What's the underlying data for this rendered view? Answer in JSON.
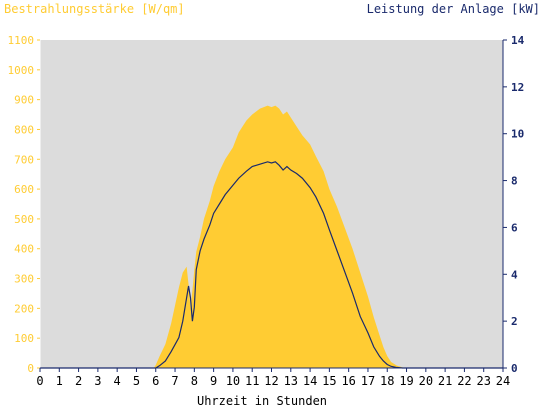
{
  "chart_data": {
    "type": "area",
    "title": "",
    "xlabel": "Uhrzeit in Stunden",
    "y_left_label": "Bestrahlungsstärke [W/qm]",
    "y_right_label": "Leistung der Anlage [kW]",
    "xlim": [
      0,
      24
    ],
    "ylim_left": [
      0,
      1100
    ],
    "ylim_right": [
      0,
      14
    ],
    "x_ticks": [
      "0",
      "1",
      "2",
      "3",
      "4",
      "5",
      "6",
      "7",
      "8",
      "9",
      "10",
      "11",
      "12",
      "13",
      "14",
      "15",
      "16",
      "17",
      "18",
      "19",
      "20",
      "21",
      "22",
      "23",
      "24"
    ],
    "y_left_ticks": [
      "0",
      "100",
      "200",
      "300",
      "400",
      "500",
      "600",
      "700",
      "800",
      "900",
      "1000",
      "1100"
    ],
    "y_right_ticks": [
      "0",
      "2",
      "4",
      "6",
      "8",
      "10",
      "12",
      "14"
    ],
    "grid": false,
    "colors": {
      "irradiance": "#ffcc33",
      "power": "#1a2a6c",
      "plot_background": "#dcdcdc",
      "left_axis_text": "#ffcc33",
      "right_axis_text": "#1a2a6c"
    },
    "series": [
      {
        "name": "Bestrahlungsstärke [W/qm]",
        "axis": "left",
        "x": [
          0,
          5.9,
          6.0,
          6.2,
          6.5,
          6.8,
          7.0,
          7.2,
          7.4,
          7.6,
          7.7,
          7.8,
          7.9,
          8.0,
          8.1,
          8.3,
          8.5,
          8.8,
          9.0,
          9.3,
          9.6,
          10.0,
          10.3,
          10.7,
          11.0,
          11.4,
          11.8,
          12.0,
          12.2,
          12.4,
          12.6,
          12.8,
          13.0,
          13.3,
          13.6,
          14.0,
          14.3,
          14.7,
          15.0,
          15.4,
          15.8,
          16.2,
          16.6,
          17.0,
          17.3,
          17.6,
          17.8,
          18.0,
          18.2,
          18.5,
          18.8,
          19.0,
          24
        ],
        "values": [
          0,
          0,
          10,
          40,
          80,
          150,
          210,
          270,
          320,
          340,
          280,
          200,
          260,
          330,
          390,
          440,
          500,
          560,
          610,
          660,
          700,
          740,
          790,
          830,
          850,
          870,
          880,
          875,
          880,
          870,
          850,
          860,
          840,
          810,
          780,
          750,
          710,
          660,
          600,
          540,
          470,
          400,
          320,
          240,
          170,
          110,
          70,
          40,
          20,
          8,
          2,
          0,
          0
        ]
      },
      {
        "name": "Leistung der Anlage [kW]",
        "axis": "right",
        "x": [
          0,
          6.0,
          6.2,
          6.5,
          6.8,
          7.0,
          7.2,
          7.4,
          7.6,
          7.7,
          7.8,
          7.9,
          8.0,
          8.1,
          8.3,
          8.5,
          8.8,
          9.0,
          9.3,
          9.6,
          10.0,
          10.3,
          10.7,
          11.0,
          11.4,
          11.8,
          12.0,
          12.2,
          12.4,
          12.6,
          12.8,
          13.0,
          13.3,
          13.6,
          14.0,
          14.3,
          14.7,
          15.0,
          15.4,
          15.8,
          16.2,
          16.6,
          17.0,
          17.3,
          17.6,
          17.8,
          18.0,
          18.2,
          18.5,
          18.8,
          19.0,
          24
        ],
        "values": [
          0,
          0,
          0.1,
          0.3,
          0.7,
          1.0,
          1.3,
          2.0,
          3.0,
          3.5,
          3.0,
          2.0,
          2.6,
          4.2,
          5.0,
          5.5,
          6.1,
          6.6,
          7.0,
          7.4,
          7.8,
          8.1,
          8.4,
          8.6,
          8.7,
          8.8,
          8.75,
          8.8,
          8.65,
          8.45,
          8.6,
          8.45,
          8.3,
          8.1,
          7.7,
          7.3,
          6.6,
          5.9,
          5.0,
          4.1,
          3.2,
          2.2,
          1.5,
          0.9,
          0.5,
          0.3,
          0.15,
          0.07,
          0.02,
          0,
          0,
          0
        ]
      }
    ]
  }
}
